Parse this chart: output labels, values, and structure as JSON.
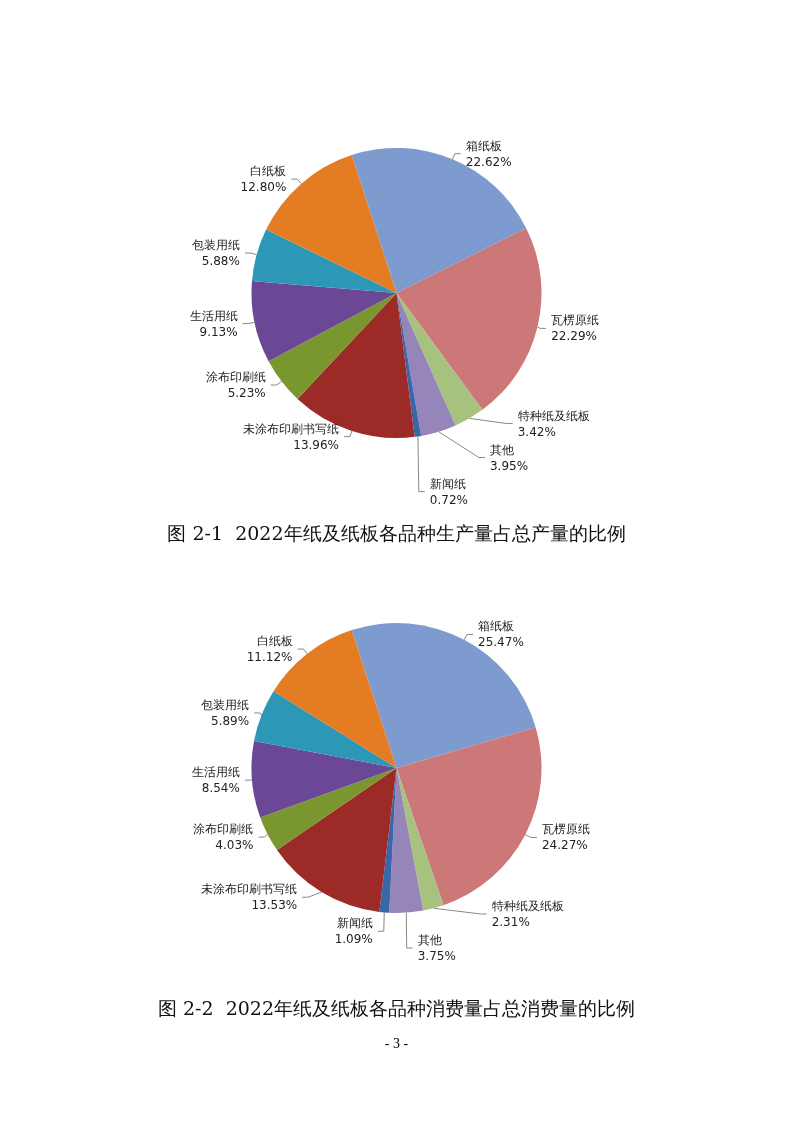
{
  "chart_data": [
    {
      "type": "pie",
      "title": "图 2-1  2022年纸及纸板各品种生产量占总产量的比例",
      "categories": [
        "箱纸板",
        "瓦楞原纸",
        "特种纸及纸板",
        "其他",
        "新闻纸",
        "未涂布印刷书写纸",
        "涂布印刷纸",
        "生活用纸",
        "包装用纸",
        "白纸板"
      ],
      "values": [
        22.62,
        22.29,
        3.42,
        3.95,
        0.72,
        13.96,
        5.23,
        9.13,
        5.88,
        12.8
      ],
      "value_labels": [
        "22.62%",
        "22.29%",
        "3.42%",
        "3.95%",
        "0.72%",
        "13.96%",
        "5.23%",
        "9.13%",
        "5.88%",
        "12.80%"
      ],
      "colors": [
        "#7d9bcf",
        "#cd7878",
        "#a6c27e",
        "#9585b8",
        "#3a67a8",
        "#9c2a27",
        "#7a972f",
        "#6a4896",
        "#2d98b5",
        "#e37c22"
      ]
    },
    {
      "type": "pie",
      "title": "图 2-2  2022年纸及纸板各品种消费量占总消费量的比例",
      "categories": [
        "箱纸板",
        "瓦楞原纸",
        "特种纸及纸板",
        "其他",
        "新闻纸",
        "未涂布印刷书写纸",
        "涂布印刷纸",
        "生活用纸",
        "包装用纸",
        "白纸板"
      ],
      "values": [
        25.47,
        24.27,
        2.31,
        3.75,
        1.09,
        13.53,
        4.03,
        8.54,
        5.89,
        11.12
      ],
      "value_labels": [
        "25.47%",
        "24.27%",
        "2.31%",
        "3.75%",
        "1.09%",
        "13.53%",
        "4.03%",
        "8.54%",
        "5.89%",
        "11.12%"
      ],
      "colors": [
        "#7d9bcf",
        "#cd7878",
        "#a6c27e",
        "#9585b8",
        "#3a67a8",
        "#9c2a27",
        "#7a972f",
        "#6a4896",
        "#2d98b5",
        "#e37c22"
      ],
      "annotations": [
        "- 3 -"
      ]
    }
  ]
}
